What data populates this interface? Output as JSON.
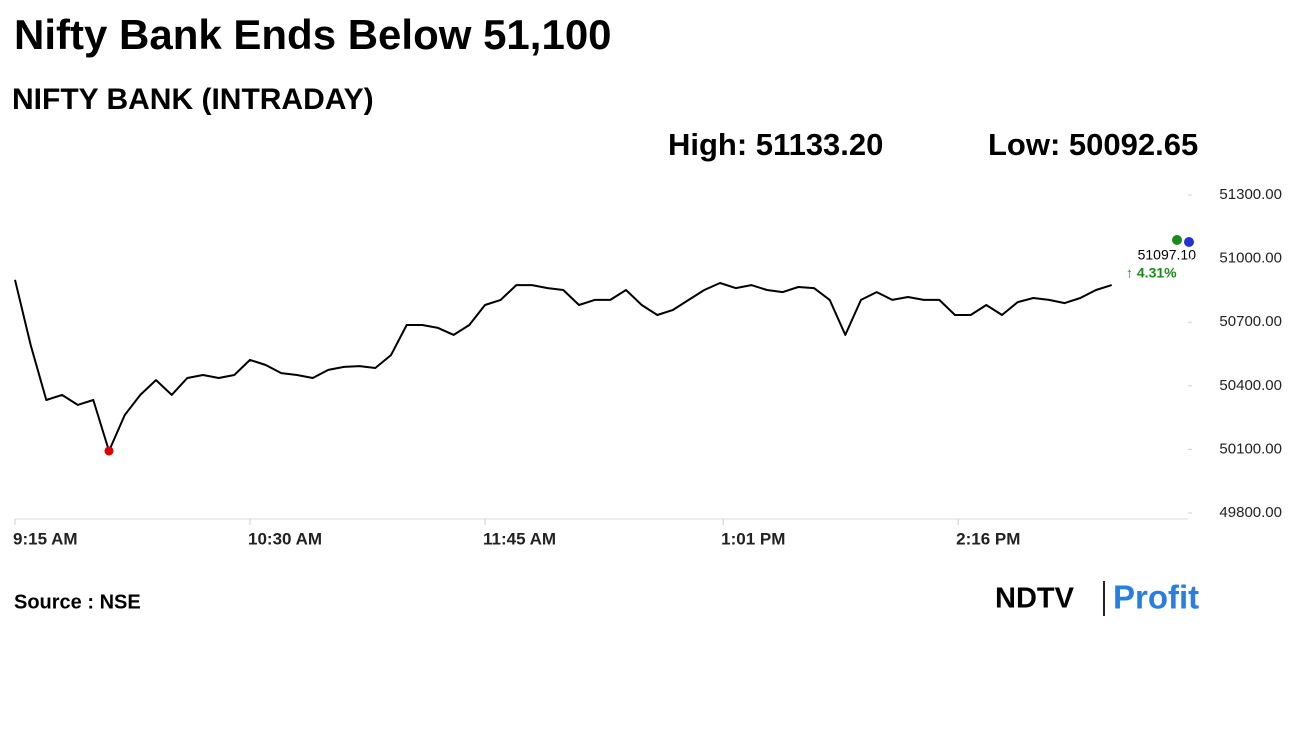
{
  "chart_data": {
    "type": "line",
    "title": "Nifty Bank Ends Below 51,100",
    "subtitle": "NIFTY BANK (INTRADAY)",
    "high_label": "High: 51133.20",
    "low_label": "Low: 50092.65",
    "last_value_label": "51097.10",
    "change_label": "↑ 4.31%",
    "source": "Source : NSE",
    "logo": {
      "brand": "NDTV",
      "product": "Profit"
    },
    "x": [
      "9:15 AM",
      "9:20 AM",
      "9:25 AM",
      "9:30 AM",
      "9:35 AM",
      "9:40 AM",
      "9:45 AM",
      "9:50 AM",
      "9:55 AM",
      "10:00 AM",
      "10:05 AM",
      "10:10 AM",
      "10:15 AM",
      "10:20 AM",
      "10:25 AM",
      "10:30 AM",
      "10:35 AM",
      "10:40 AM",
      "10:45 AM",
      "10:50 AM",
      "10:55 AM",
      "11:00 AM",
      "11:05 AM",
      "11:10 AM",
      "11:15 AM",
      "11:20 AM",
      "11:25 AM",
      "11:30 AM",
      "11:35 AM",
      "11:40 AM",
      "11:45 AM",
      "11:50 AM",
      "11:55 AM",
      "12:00 PM",
      "12:05 PM",
      "12:10 PM",
      "12:15 PM",
      "12:20 PM",
      "12:25 PM",
      "12:30 PM",
      "12:35 PM",
      "12:40 PM",
      "12:45 PM",
      "12:50 PM",
      "12:55 PM",
      "1:00 PM",
      "1:05 PM",
      "1:10 PM",
      "1:15 PM",
      "1:20 PM",
      "1:25 PM",
      "1:30 PM",
      "1:35 PM",
      "1:40 PM",
      "1:45 PM",
      "1:50 PM",
      "1:55 PM",
      "2:00 PM",
      "2:05 PM",
      "2:10 PM",
      "2:15 PM",
      "2:20 PM",
      "2:25 PM",
      "2:30 PM",
      "2:35 PM",
      "2:40 PM",
      "2:45 PM",
      "2:50 PM",
      "2:55 PM",
      "3:00 PM",
      "3:05 PM"
    ],
    "series": [
      {
        "name": "NIFTY BANK",
        "color": "#000000",
        "values": [
          50900,
          50592,
          50333,
          50357,
          50310,
          50333,
          50092.65,
          50262,
          50357,
          50427,
          50357,
          50437,
          50451,
          50437,
          50451,
          50522,
          50498,
          50460,
          50451,
          50437,
          50475,
          50489,
          50493,
          50484,
          50545,
          50687,
          50687,
          50673,
          50640,
          50687,
          50781,
          50805,
          50875,
          50875,
          50861,
          50852,
          50781,
          50805,
          50805,
          50852,
          50781,
          50734,
          50758,
          50805,
          50852,
          50885,
          50861,
          50875,
          50852,
          50842,
          50866,
          50861,
          50805,
          50640,
          50805,
          50842,
          50805,
          50819,
          50805,
          50805,
          50734,
          50734,
          50781,
          50734,
          50795,
          50814,
          50805,
          50790,
          50814,
          50852,
          50875
        ]
      }
    ],
    "xlim": [
      "9:15 AM",
      "3:30 PM"
    ],
    "xticks": [
      "9:15 AM",
      "10:30 AM",
      "11:45 AM",
      "1:01 PM",
      "2:16 PM"
    ],
    "ylim": [
      49800,
      51300
    ],
    "yticks": [
      {
        "value": 49800,
        "label": "49800.00"
      },
      {
        "value": 50100,
        "label": "50100.00"
      },
      {
        "value": 50400,
        "label": "50400.00"
      },
      {
        "value": 50700,
        "label": "50700.00"
      },
      {
        "value": 51000,
        "label": "51000.00"
      },
      {
        "value": 51300,
        "label": "51300.00"
      }
    ],
    "low_marker_color": "#e00000",
    "grid": false
  }
}
